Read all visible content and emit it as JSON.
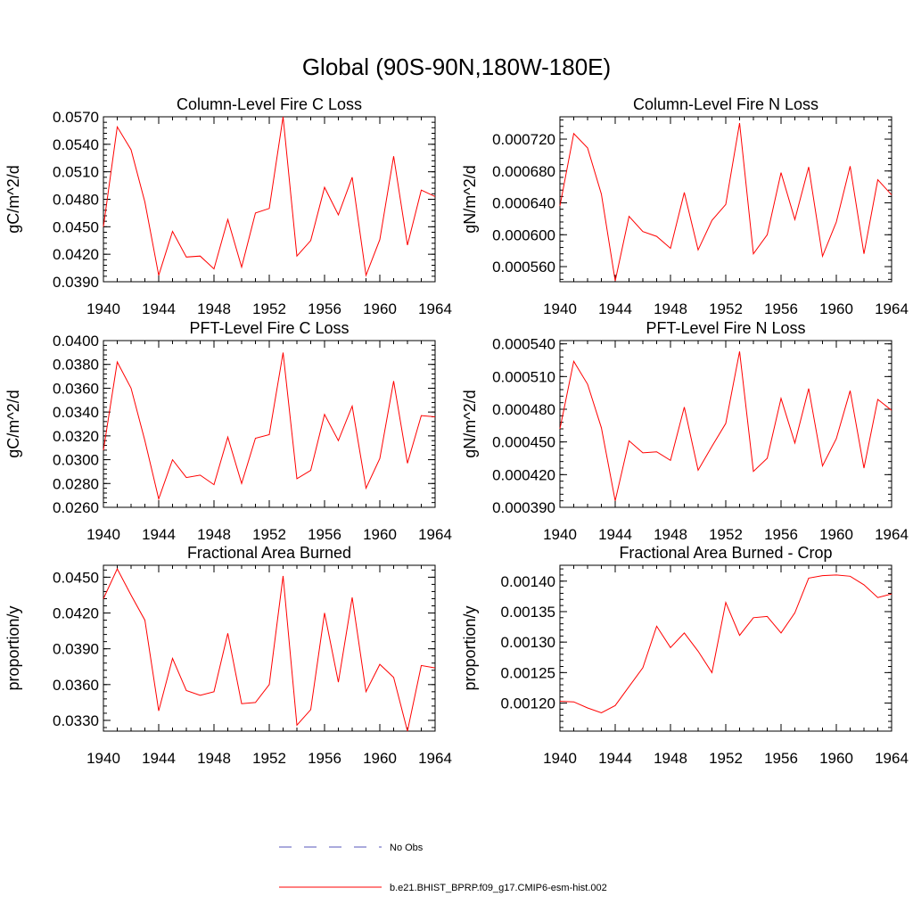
{
  "figure": {
    "title": "Global (90S-90N,180W-180E)"
  },
  "colors": {
    "model_series": "#ff0000",
    "obs_series": "#5555bb"
  },
  "legend": {
    "obs_label": "No Obs",
    "model_label": "b.e21.BHIST_BPRP.f09_g17.CMIP6-esm-hist.002"
  },
  "chart_data": [
    {
      "type": "line",
      "title": "Column-Level Fire C Loss",
      "ylabel": "gC/m^2/d",
      "xlim": [
        1940,
        1964
      ],
      "ylim": [
        0.039,
        0.057
      ],
      "yticks": [
        0.039,
        0.042,
        0.045,
        0.048,
        0.051,
        0.054,
        0.057
      ],
      "ytick_labels": [
        "0.0390",
        "0.0420",
        "0.0450",
        "0.0480",
        "0.0510",
        "0.0540",
        "0.0570"
      ],
      "xticks": [
        1940,
        1944,
        1948,
        1952,
        1956,
        1960,
        1964
      ],
      "xtick_labels": [
        "1940",
        "1944",
        "1948",
        "1952",
        "1956",
        "1960",
        "1964"
      ],
      "series": [
        {
          "name": "b.e21.BHIST_BPRP.f09_g17.CMIP6-esm-hist.002",
          "x": [
            1940,
            1941,
            1942,
            1943,
            1944,
            1945,
            1946,
            1947,
            1948,
            1949,
            1950,
            1951,
            1952,
            1953,
            1954,
            1955,
            1956,
            1957,
            1958,
            1959,
            1960,
            1961,
            1962,
            1963,
            1964
          ],
          "y": [
            0.045,
            0.0559,
            0.0534,
            0.0477,
            0.0397,
            0.0445,
            0.0417,
            0.0418,
            0.0404,
            0.0458,
            0.0406,
            0.0465,
            0.047,
            0.057,
            0.0418,
            0.0435,
            0.0493,
            0.0463,
            0.0504,
            0.0397,
            0.0436,
            0.0527,
            0.043,
            0.049,
            0.0483
          ]
        }
      ]
    },
    {
      "type": "line",
      "title": "Column-Level Fire N Loss",
      "ylabel": "gN/m^2/d",
      "xlim": [
        1940,
        1964
      ],
      "ylim": [
        0.000541,
        0.000748
      ],
      "yticks": [
        0.00056,
        0.0006,
        0.00064,
        0.00068,
        0.00072
      ],
      "ytick_labels": [
        "0.000560",
        "0.000600",
        "0.000640",
        "0.000680",
        "0.000720"
      ],
      "xticks": [
        1940,
        1944,
        1948,
        1952,
        1956,
        1960,
        1964
      ],
      "xtick_labels": [
        "1940",
        "1944",
        "1948",
        "1952",
        "1956",
        "1960",
        "1964"
      ],
      "series": [
        {
          "name": "b.e21.BHIST_BPRP.f09_g17.CMIP6-esm-hist.002",
          "x": [
            1940,
            1941,
            1942,
            1943,
            1944,
            1945,
            1946,
            1947,
            1948,
            1949,
            1950,
            1951,
            1952,
            1953,
            1954,
            1955,
            1956,
            1957,
            1958,
            1959,
            1960,
            1961,
            1962,
            1963,
            1964
          ],
          "y": [
            0.000636,
            0.000727,
            0.000709,
            0.000651,
            0.000542,
            0.000623,
            0.000604,
            0.000598,
            0.000583,
            0.000653,
            0.000581,
            0.000618,
            0.000638,
            0.00074,
            0.000576,
            0.0006,
            0.000678,
            0.000619,
            0.000685,
            0.000573,
            0.000616,
            0.000686,
            0.000576,
            0.000669,
            0.00065
          ]
        }
      ]
    },
    {
      "type": "line",
      "title": "PFT-Level Fire C Loss",
      "ylabel": "gC/m^2/d",
      "xlim": [
        1940,
        1964
      ],
      "ylim": [
        0.026,
        0.04
      ],
      "yticks": [
        0.026,
        0.028,
        0.03,
        0.032,
        0.034,
        0.036,
        0.038,
        0.04
      ],
      "ytick_labels": [
        "0.0260",
        "0.0280",
        "0.0300",
        "0.0320",
        "0.0340",
        "0.0360",
        "0.0380",
        "0.0400"
      ],
      "xticks": [
        1940,
        1944,
        1948,
        1952,
        1956,
        1960,
        1964
      ],
      "xtick_labels": [
        "1940",
        "1944",
        "1948",
        "1952",
        "1956",
        "1960",
        "1964"
      ],
      "series": [
        {
          "name": "b.e21.BHIST_BPRP.f09_g17.CMIP6-esm-hist.002",
          "x": [
            1940,
            1941,
            1942,
            1943,
            1944,
            1945,
            1946,
            1947,
            1948,
            1949,
            1950,
            1951,
            1952,
            1953,
            1954,
            1955,
            1956,
            1957,
            1958,
            1959,
            1960,
            1961,
            1962,
            1963,
            1964
          ],
          "y": [
            0.0308,
            0.0382,
            0.036,
            0.0316,
            0.0267,
            0.03,
            0.0285,
            0.0287,
            0.0279,
            0.0319,
            0.028,
            0.0318,
            0.0321,
            0.039,
            0.0284,
            0.0291,
            0.0338,
            0.0316,
            0.0345,
            0.0276,
            0.0301,
            0.0366,
            0.0297,
            0.0337,
            0.0336
          ]
        }
      ]
    },
    {
      "type": "line",
      "title": "PFT-Level Fire N Loss",
      "ylabel": "gN/m^2/d",
      "xlim": [
        1940,
        1964
      ],
      "ylim": [
        0.00039,
        0.000543
      ],
      "yticks": [
        0.00039,
        0.00042,
        0.00045,
        0.00048,
        0.00051,
        0.00054
      ],
      "ytick_labels": [
        "0.000390",
        "0.000420",
        "0.000450",
        "0.000480",
        "0.000510",
        "0.000540"
      ],
      "xticks": [
        1940,
        1944,
        1948,
        1952,
        1956,
        1960,
        1964
      ],
      "xtick_labels": [
        "1940",
        "1944",
        "1948",
        "1952",
        "1956",
        "1960",
        "1964"
      ],
      "series": [
        {
          "name": "b.e21.BHIST_BPRP.f09_g17.CMIP6-esm-hist.002",
          "x": [
            1940,
            1941,
            1942,
            1943,
            1944,
            1945,
            1946,
            1947,
            1948,
            1949,
            1950,
            1951,
            1952,
            1953,
            1954,
            1955,
            1956,
            1957,
            1958,
            1959,
            1960,
            1961,
            1962,
            1963,
            1964
          ],
          "y": [
            0.000462,
            0.000524,
            0.000503,
            0.000463,
            0.000396,
            0.000451,
            0.00044,
            0.000441,
            0.000433,
            0.000482,
            0.000424,
            0.000446,
            0.000467,
            0.000533,
            0.000423,
            0.000435,
            0.00049,
            0.000449,
            0.000499,
            0.000428,
            0.000453,
            0.000497,
            0.000426,
            0.000489,
            0.000479
          ]
        }
      ]
    },
    {
      "type": "line",
      "title": "Fractional Area Burned",
      "ylabel": "proportion/y",
      "xlim": [
        1940,
        1964
      ],
      "ylim": [
        0.0321,
        0.046
      ],
      "yticks": [
        0.033,
        0.036,
        0.039,
        0.042,
        0.045
      ],
      "ytick_labels": [
        "0.0330",
        "0.0360",
        "0.0390",
        "0.0420",
        "0.0450"
      ],
      "xticks": [
        1940,
        1944,
        1948,
        1952,
        1956,
        1960,
        1964
      ],
      "xtick_labels": [
        "1940",
        "1944",
        "1948",
        "1952",
        "1956",
        "1960",
        "1964"
      ],
      "series": [
        {
          "name": "b.e21.BHIST_BPRP.f09_g17.CMIP6-esm-hist.002",
          "x": [
            1940,
            1941,
            1942,
            1943,
            1944,
            1945,
            1946,
            1947,
            1948,
            1949,
            1950,
            1951,
            1952,
            1953,
            1954,
            1955,
            1956,
            1957,
            1958,
            1959,
            1960,
            1961,
            1962,
            1963,
            1964
          ],
          "y": [
            0.0432,
            0.0457,
            0.0435,
            0.0414,
            0.0338,
            0.0382,
            0.0355,
            0.0351,
            0.0354,
            0.0403,
            0.0344,
            0.0345,
            0.036,
            0.0451,
            0.0326,
            0.0339,
            0.042,
            0.0362,
            0.0433,
            0.0354,
            0.0377,
            0.0366,
            0.0321,
            0.0376,
            0.0374
          ]
        }
      ]
    },
    {
      "type": "line",
      "title": "Fractional Area Burned - Crop",
      "ylabel": "proportion/y",
      "xlim": [
        1940,
        1964
      ],
      "ylim": [
        0.001154,
        0.001426
      ],
      "yticks": [
        0.0012,
        0.00125,
        0.0013,
        0.00135,
        0.0014
      ],
      "ytick_labels": [
        "0.00120",
        "0.00125",
        "0.00130",
        "0.00135",
        "0.00140"
      ],
      "xticks": [
        1940,
        1944,
        1948,
        1952,
        1956,
        1960,
        1964
      ],
      "xtick_labels": [
        "1940",
        "1944",
        "1948",
        "1952",
        "1956",
        "1960",
        "1964"
      ],
      "series": [
        {
          "name": "b.e21.BHIST_BPRP.f09_g17.CMIP6-esm-hist.002",
          "x": [
            1940,
            1941,
            1942,
            1943,
            1944,
            1945,
            1946,
            1947,
            1948,
            1949,
            1950,
            1951,
            1952,
            1953,
            1954,
            1955,
            1956,
            1957,
            1958,
            1959,
            1960,
            1961,
            1962,
            1963,
            1964
          ],
          "y": [
            0.001203,
            0.001202,
            0.001192,
            0.001184,
            0.001196,
            0.001227,
            0.001258,
            0.001326,
            0.001291,
            0.001315,
            0.001285,
            0.00125,
            0.001365,
            0.001311,
            0.00134,
            0.001342,
            0.001315,
            0.001348,
            0.001405,
            0.001409,
            0.00141,
            0.001408,
            0.001394,
            0.001373,
            0.001379
          ]
        }
      ]
    }
  ]
}
